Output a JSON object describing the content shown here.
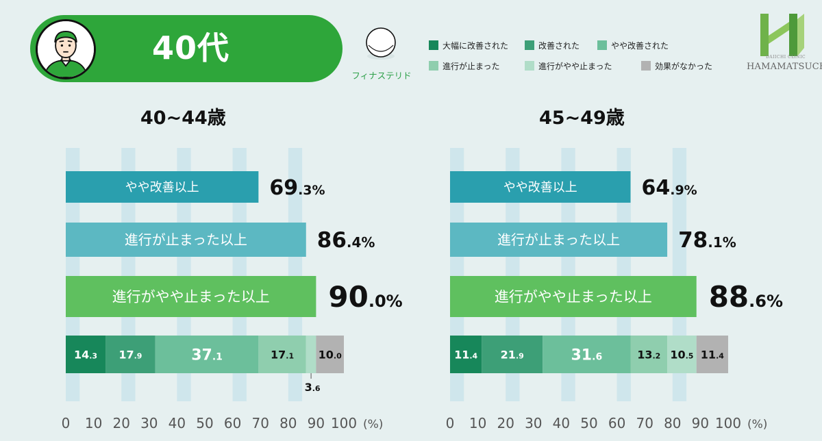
{
  "header": {
    "age_group": "40代",
    "drug_name": "フィナステリド",
    "colors": {
      "header_green": "#2ea63a",
      "background": "#e6f0f0"
    }
  },
  "logo": {
    "subtitle": "DAIICHI CLINIC",
    "name": "HAMAMATSUCHO"
  },
  "legend": [
    {
      "label": "大幅に改善された",
      "color": "#17875a"
    },
    {
      "label": "改善された",
      "color": "#3d9f77"
    },
    {
      "label": "やや改善された",
      "color": "#6cbf9b"
    },
    {
      "label": "進行が止まった",
      "color": "#8fceae"
    },
    {
      "label": "進行がやや止まった",
      "color": "#b0ddc8"
    },
    {
      "label": "効果がなかった",
      "color": "#b2b2b2"
    }
  ],
  "chart_data": [
    {
      "type": "bar",
      "title": "40~44歳",
      "axis_unit": "(%)",
      "xlim": [
        0,
        100
      ],
      "x_ticks": [
        "0",
        "10",
        "20",
        "30",
        "40",
        "50",
        "60",
        "70",
        "80",
        "90",
        "100"
      ],
      "summary_bars": [
        {
          "label": "やや改善以上",
          "value": 69.3,
          "int": "69",
          "dec": ".3",
          "pct": "%",
          "color": "#2a9fae"
        },
        {
          "label": "進行が止まった以上",
          "value": 86.4,
          "int": "86",
          "dec": ".4",
          "pct": "%",
          "color": "#5cb8c2"
        },
        {
          "label": "進行がやや止まった以上",
          "value": 90.0,
          "int": "90",
          "dec": ".0",
          "pct": "%",
          "color": "#5fc05f"
        }
      ],
      "stack": [
        {
          "name": "大幅に改善された",
          "value": 14.3,
          "int": "14",
          "dec": ".3"
        },
        {
          "name": "改善された",
          "value": 17.9,
          "int": "17",
          "dec": ".9"
        },
        {
          "name": "やや改善された",
          "value": 37.1,
          "int": "37",
          "dec": ".1"
        },
        {
          "name": "進行が止まった",
          "value": 17.1,
          "int": "17",
          "dec": ".1"
        },
        {
          "name": "進行がやや止まった",
          "value": 3.6,
          "int": "3",
          "dec": ".6"
        },
        {
          "name": "効果がなかった",
          "value": 10.0,
          "int": "10",
          "dec": ".0"
        }
      ]
    },
    {
      "type": "bar",
      "title": "45~49歳",
      "axis_unit": "(%)",
      "xlim": [
        0,
        100
      ],
      "x_ticks": [
        "0",
        "10",
        "20",
        "30",
        "40",
        "50",
        "60",
        "70",
        "80",
        "90",
        "100"
      ],
      "summary_bars": [
        {
          "label": "やや改善以上",
          "value": 64.9,
          "int": "64",
          "dec": ".9",
          "pct": "%",
          "color": "#2a9fae"
        },
        {
          "label": "進行が止まった以上",
          "value": 78.1,
          "int": "78",
          "dec": ".1",
          "pct": "%",
          "color": "#5cb8c2"
        },
        {
          "label": "進行がやや止まった以上",
          "value": 88.6,
          "int": "88",
          "dec": ".6",
          "pct": "%",
          "color": "#5fc05f"
        }
      ],
      "stack": [
        {
          "name": "大幅に改善された",
          "value": 11.4,
          "int": "11",
          "dec": ".4"
        },
        {
          "name": "改善された",
          "value": 21.9,
          "int": "21",
          "dec": ".9"
        },
        {
          "name": "やや改善された",
          "value": 31.6,
          "int": "31",
          "dec": ".6"
        },
        {
          "name": "進行が止まった",
          "value": 13.2,
          "int": "13",
          "dec": ".2"
        },
        {
          "name": "進行がやや止まった",
          "value": 10.5,
          "int": "10",
          "dec": ".5"
        },
        {
          "name": "効果がなかった",
          "value": 11.4,
          "int": "11",
          "dec": ".4"
        }
      ]
    }
  ]
}
